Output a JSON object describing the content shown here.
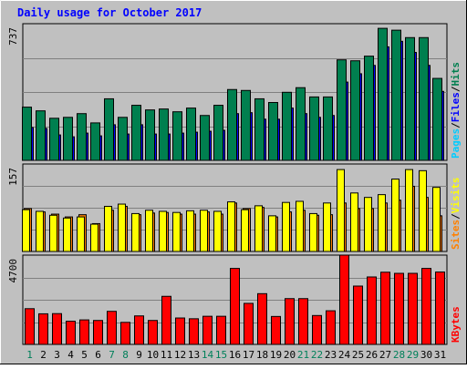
{
  "chart_data": {
    "type": "bar",
    "title": "Daily usage for October 2017",
    "categories": [
      "1",
      "2",
      "3",
      "4",
      "5",
      "6",
      "7",
      "8",
      "9",
      "10",
      "11",
      "12",
      "13",
      "14",
      "15",
      "16",
      "17",
      "18",
      "19",
      "20",
      "21",
      "22",
      "23",
      "24",
      "25",
      "26",
      "27",
      "28",
      "29",
      "30",
      "31"
    ],
    "weekend_days": [
      "1",
      "7",
      "8",
      "14",
      "15",
      "21",
      "22",
      "28",
      "29"
    ],
    "panels": [
      {
        "id": "hits",
        "ylabel_top": "737",
        "ymax": 737,
        "legend": [
          "Pages",
          "Files",
          "Hits"
        ],
        "series": [
          {
            "name": "Pages",
            "color": "#00ccff",
            "values": [
              102,
              92,
              77,
              67,
              97,
              72,
              117,
              87,
              122,
              82,
              82,
              87,
              87,
              72,
              67,
              127,
              122,
              122,
              102,
              142,
              152,
              117,
              112,
              292,
              312,
              362,
              462,
              502,
              522,
              482,
              282
            ]
          },
          {
            "name": "Files",
            "color": "#0000ff",
            "values": [
              177,
              172,
              137,
              127,
              147,
              132,
              192,
              142,
              192,
              142,
              142,
              147,
              152,
              157,
              162,
              252,
              257,
              222,
              222,
              282,
              252,
              232,
              242,
              422,
              467,
              512,
              612,
              642,
              582,
              512,
              372
            ]
          },
          {
            "name": "Hits",
            "color": "#007f4f",
            "values": [
              287,
              267,
              227,
              232,
              252,
              202,
              332,
              232,
              297,
              272,
              277,
              262,
              282,
              242,
              297,
              382,
              377,
              332,
              312,
              367,
              392,
              342,
              342,
              542,
              537,
              562,
              712,
              702,
              662,
              662,
              442
            ]
          }
        ]
      },
      {
        "id": "visits",
        "ylabel_top": "157",
        "ymax": 157,
        "legend": [
          "Sites",
          "Visits"
        ],
        "series": [
          {
            "name": "Sites",
            "color": "#ff8000",
            "values": [
              77,
              71,
              67,
              62,
              66,
              50,
              74,
              81,
              66,
              69,
              70,
              67,
              67,
              71,
              67,
              87,
              77,
              79,
              62,
              71,
              74,
              65,
              66,
              87,
              77,
              77,
              87,
              92,
              117,
              97,
              64
            ]
          },
          {
            "name": "Visits",
            "color": "#ffff00",
            "values": [
              75,
              72,
              65,
              60,
              62,
              49,
              81,
              85,
              68,
              74,
              72,
              70,
              73,
              74,
              72,
              89,
              75,
              82,
              64,
              88,
              90,
              68,
              87,
              147,
              105,
              97,
              102,
              130,
              147,
              145,
              115
            ]
          }
        ]
      },
      {
        "id": "kbytes",
        "ylabel_top": "4700",
        "ymax": 4700,
        "legend": [
          "KBytes"
        ],
        "series": [
          {
            "name": "KBytes",
            "color": "#ff0000",
            "values": [
              1880,
              1610,
              1620,
              1220,
              1290,
              1260,
              1740,
              1160,
              1500,
              1260,
              2530,
              1390,
              1350,
              1480,
              1480,
              4000,
              2160,
              2670,
              1470,
              2410,
              2410,
              1520,
              1770,
              4700,
              3070,
              3550,
              3800,
              3740,
              3740,
              4000,
              3810
            ]
          }
        ]
      }
    ],
    "legend_separator": "/",
    "background": "#c0c0c0",
    "plot_background": "#c0c0c0"
  }
}
